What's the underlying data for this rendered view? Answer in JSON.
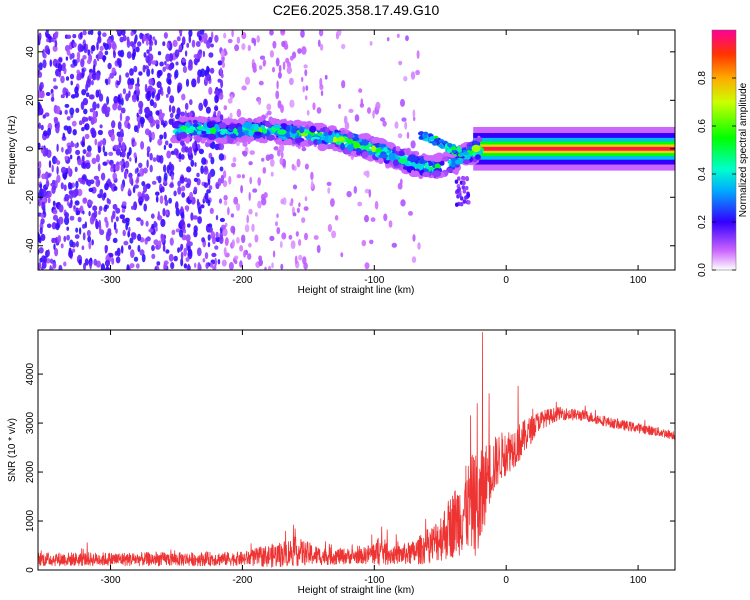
{
  "title": "C2E6.2025.358.17.49.G10",
  "chart_data": [
    {
      "type": "heatmap",
      "xlabel": "Height of straight line (km)",
      "ylabel": "Frequency (Hz)",
      "xlim": [
        -355,
        128
      ],
      "ylim": [
        -50,
        49
      ],
      "x_ticks": [
        -300,
        -200,
        -100,
        0,
        100
      ],
      "y_ticks": [
        -40,
        -20,
        0,
        20,
        40
      ],
      "colorbar": {
        "label": "Normalized spectral amplitude",
        "range": [
          0,
          1
        ],
        "ticks": [
          0.0,
          0.2,
          0.4,
          0.6,
          0.8
        ],
        "tick_labels": [
          "0.0",
          "0.2",
          "0.4",
          "0.6",
          "0.8"
        ]
      },
      "ridge": [
        {
          "x": -250,
          "f": 8,
          "a": 0.55
        },
        {
          "x": -230,
          "f": 8,
          "a": 0.55
        },
        {
          "x": -210,
          "f": 7,
          "a": 0.5
        },
        {
          "x": -190,
          "f": 8,
          "a": 0.6
        },
        {
          "x": -170,
          "f": 7,
          "a": 0.6
        },
        {
          "x": -150,
          "f": 6,
          "a": 0.6
        },
        {
          "x": -130,
          "f": 4,
          "a": 0.65
        },
        {
          "x": -115,
          "f": 2,
          "a": 0.75
        },
        {
          "x": -100,
          "f": 0,
          "a": 0.65
        },
        {
          "x": -85,
          "f": -3,
          "a": 0.6
        },
        {
          "x": -70,
          "f": -6,
          "a": 0.55
        },
        {
          "x": -55,
          "f": -8,
          "a": 0.55
        },
        {
          "x": -40,
          "f": -6,
          "a": 0.45
        },
        {
          "x": -30,
          "f": -2,
          "a": 0.5
        },
        {
          "x": -20,
          "f": 0,
          "a": 0.85
        },
        {
          "x": 0,
          "f": 1,
          "a": 0.85
        },
        {
          "x": 20,
          "f": 0,
          "a": 0.9
        },
        {
          "x": 60,
          "f": 0,
          "a": 0.95
        },
        {
          "x": 100,
          "f": 0,
          "a": 0.95
        },
        {
          "x": 128,
          "f": 0,
          "a": 0.95
        }
      ]
    },
    {
      "type": "line",
      "xlabel": "Height of straight line (km)",
      "ylabel": "SNR (10 * v/v)",
      "xlim": [
        -355,
        128
      ],
      "ylim": [
        0,
        4900
      ],
      "x_ticks": [
        -300,
        -200,
        -100,
        0,
        100
      ],
      "y_ticks": [
        0,
        1000,
        2000,
        3000,
        4000
      ],
      "series": [
        {
          "color": "#ee3333",
          "envelope": [
            {
              "x": -355,
              "base": 220,
              "amp": 140
            },
            {
              "x": -250,
              "base": 220,
              "amp": 140
            },
            {
              "x": -200,
              "base": 230,
              "amp": 140
            },
            {
              "x": -175,
              "base": 300,
              "amp": 250
            },
            {
              "x": -160,
              "base": 380,
              "amp": 300
            },
            {
              "x": -140,
              "base": 280,
              "amp": 180
            },
            {
              "x": -110,
              "base": 280,
              "amp": 150
            },
            {
              "x": -95,
              "base": 380,
              "amp": 300
            },
            {
              "x": -85,
              "base": 300,
              "amp": 180
            },
            {
              "x": -70,
              "base": 350,
              "amp": 250
            },
            {
              "x": -55,
              "base": 550,
              "amp": 400
            },
            {
              "x": -45,
              "base": 800,
              "amp": 600
            },
            {
              "x": -35,
              "base": 1100,
              "amp": 800
            },
            {
              "x": -25,
              "base": 1400,
              "amp": 1000
            },
            {
              "x": -20,
              "base": 1200,
              "amp": 1200
            },
            {
              "x": -15,
              "base": 1900,
              "amp": 700
            },
            {
              "x": -5,
              "base": 2300,
              "amp": 500
            },
            {
              "x": 10,
              "base": 2600,
              "amp": 400
            },
            {
              "x": 25,
              "base": 3050,
              "amp": 200
            },
            {
              "x": 40,
              "base": 3200,
              "amp": 130
            },
            {
              "x": 60,
              "base": 3150,
              "amp": 110
            },
            {
              "x": 80,
              "base": 3000,
              "amp": 100
            },
            {
              "x": 100,
              "base": 2900,
              "amp": 100
            },
            {
              "x": 128,
              "base": 2750,
              "amp": 90
            }
          ],
          "peaks": [
            {
              "x": -18,
              "y": 4850
            },
            {
              "x": -22,
              "y": 3400
            },
            {
              "x": -27,
              "y": 3150
            },
            {
              "x": -13,
              "y": 3600
            },
            {
              "x": 9,
              "y": 3750
            }
          ]
        }
      ]
    }
  ]
}
